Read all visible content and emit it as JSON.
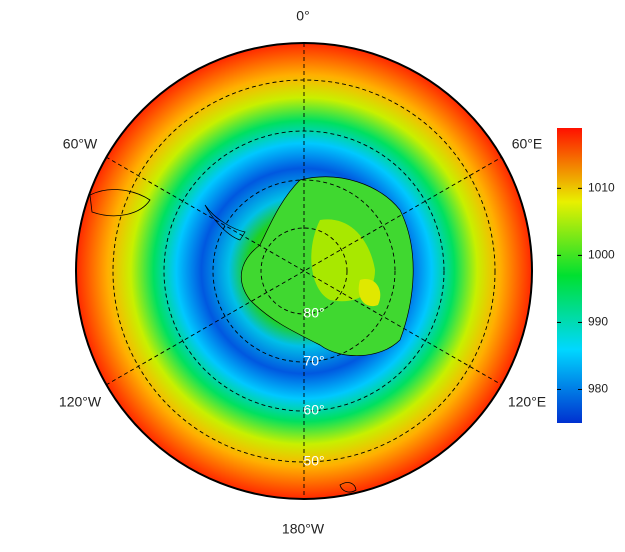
{
  "longitude_labels": [
    "0°",
    "60°E",
    "120°E",
    "180°W",
    "120°W",
    "60°W"
  ],
  "latitude_labels": [
    "80°",
    "70°",
    "60°",
    "50°"
  ],
  "colorbar": {
    "lim": [
      975,
      1019
    ],
    "ticks": [
      980,
      990,
      1000,
      1010
    ]
  }
}
